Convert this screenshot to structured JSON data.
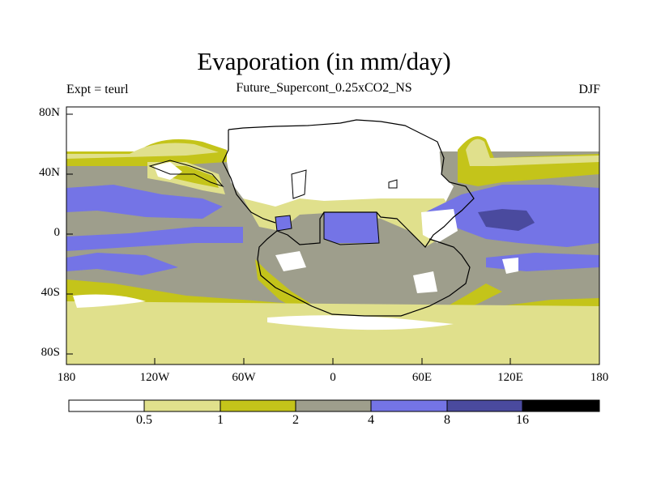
{
  "title": "Evaporation (in mm/day)",
  "subtitle": "Future_Supercont_0.25xCO2_NS",
  "left_label": "Expt = teurl",
  "right_label": "DJF",
  "lat_ticks": [
    "80N",
    "40N",
    "0",
    "40S",
    "80S"
  ],
  "lon_ticks": [
    "180",
    "120W",
    "60W",
    "0",
    "60E",
    "120E",
    "180"
  ],
  "colorbar": {
    "labels": [
      "0.5",
      "1",
      "2",
      "4",
      "8",
      "16"
    ],
    "colors": [
      "#ffffff",
      "#e0e08c",
      "#c4c41a",
      "#9e9e8c",
      "#7474e6",
      "#4a4a9e",
      "#000000"
    ]
  },
  "colors": {
    "white": "#ffffff",
    "pale": "#e0e08c",
    "olive": "#c4c41a",
    "gray": "#9e9e8c",
    "blue": "#7474e6",
    "dblue": "#4a4a9e"
  }
}
